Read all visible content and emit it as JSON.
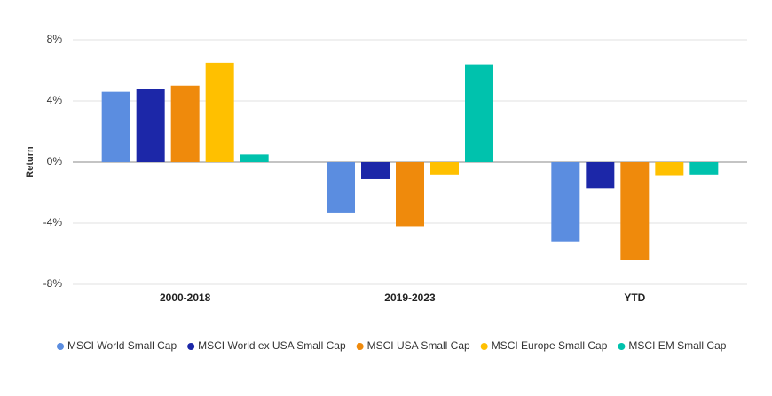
{
  "chart_data": {
    "type": "bar",
    "y_label": "Return",
    "categories": [
      "2000-2018",
      "2019-2023",
      "YTD"
    ],
    "series": [
      {
        "name": "MSCI World Small Cap",
        "color": "#5b8de0",
        "values": [
          4.6,
          -3.3,
          -5.2
        ]
      },
      {
        "name": "MSCI World ex USA Small Cap",
        "color": "#1c27a8",
        "values": [
          4.8,
          -1.1,
          -1.7
        ]
      },
      {
        "name": "MSCI USA Small Cap",
        "color": "#ef8a0c",
        "values": [
          5.0,
          -4.2,
          -6.4
        ]
      },
      {
        "name": "MSCI Europe Small Cap",
        "color": "#ffc000",
        "values": [
          6.5,
          -0.8,
          -0.9
        ]
      },
      {
        "name": "MSCI EM Small Cap",
        "color": "#00c2ad",
        "values": [
          0.5,
          6.4,
          -0.8
        ]
      }
    ],
    "ylim": [
      -8,
      8
    ],
    "yticks": [
      {
        "value": -8,
        "label": "-8%"
      },
      {
        "value": -4,
        "label": "-4%"
      },
      {
        "value": 0,
        "label": "0%"
      },
      {
        "value": 4,
        "label": "4%"
      },
      {
        "value": 8,
        "label": "8%"
      }
    ],
    "grid": true
  }
}
